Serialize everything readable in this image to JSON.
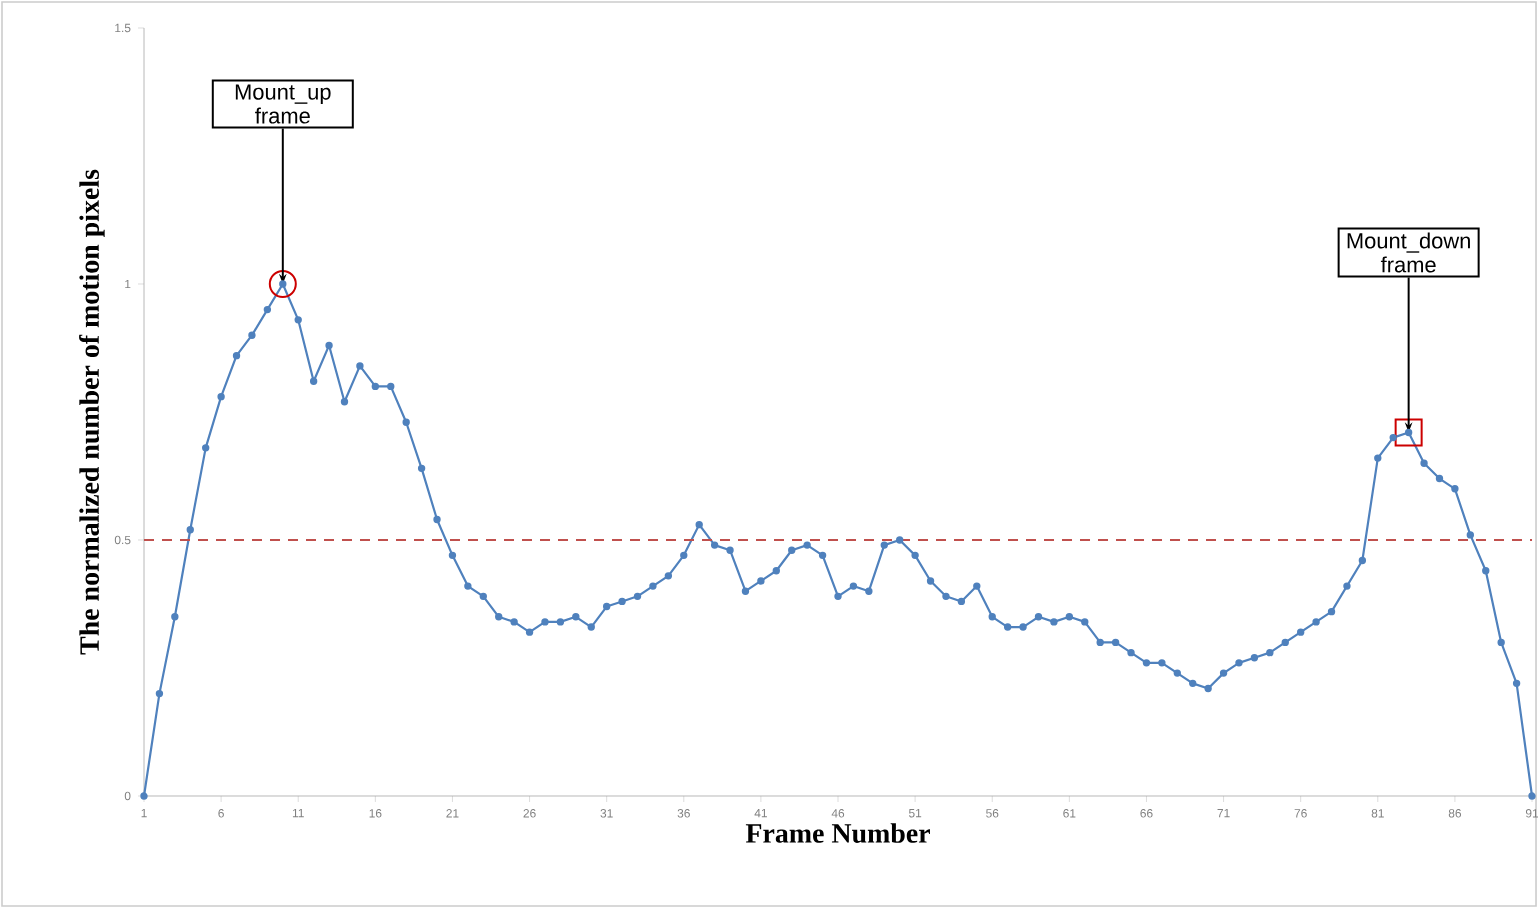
{
  "chart_data": {
    "type": "line",
    "xlabel": "Frame Number",
    "ylabel": "The normalized number of motion pixels",
    "x": [
      1,
      2,
      3,
      4,
      5,
      6,
      7,
      8,
      9,
      10,
      11,
      12,
      13,
      14,
      15,
      16,
      17,
      18,
      19,
      20,
      21,
      22,
      23,
      24,
      25,
      26,
      27,
      28,
      29,
      30,
      31,
      32,
      33,
      34,
      35,
      36,
      37,
      38,
      39,
      40,
      41,
      42,
      43,
      44,
      45,
      46,
      47,
      48,
      49,
      50,
      51,
      52,
      53,
      54,
      55,
      56,
      57,
      58,
      59,
      60,
      61,
      62,
      63,
      64,
      65,
      66,
      67,
      68,
      69,
      70,
      71,
      72,
      73,
      74,
      75,
      76,
      77,
      78,
      79,
      80,
      81,
      82,
      83,
      84,
      85,
      86,
      87,
      88,
      89,
      90,
      91
    ],
    "series": [
      {
        "color": "#4f81bd",
        "values": [
          0,
          0.2,
          0.35,
          0.52,
          0.68,
          0.78,
          0.86,
          0.9,
          0.95,
          1.0,
          0.93,
          0.81,
          0.88,
          0.77,
          0.84,
          0.8,
          0.8,
          0.73,
          0.64,
          0.54,
          0.47,
          0.41,
          0.39,
          0.35,
          0.34,
          0.32,
          0.34,
          0.34,
          0.35,
          0.33,
          0.37,
          0.38,
          0.39,
          0.41,
          0.43,
          0.47,
          0.53,
          0.49,
          0.48,
          0.4,
          0.42,
          0.44,
          0.48,
          0.49,
          0.47,
          0.39,
          0.41,
          0.4,
          0.49,
          0.5,
          0.47,
          0.42,
          0.39,
          0.38,
          0.41,
          0.35,
          0.33,
          0.33,
          0.35,
          0.34,
          0.35,
          0.34,
          0.3,
          0.3,
          0.28,
          0.26,
          0.26,
          0.24,
          0.22,
          0.21,
          0.24,
          0.26,
          0.27,
          0.28,
          0.3,
          0.32,
          0.34,
          0.36,
          0.41,
          0.46,
          0.66,
          0.7,
          0.71,
          0.65,
          0.62,
          0.6,
          0.51,
          0.44,
          0.3,
          0.22,
          0
        ]
      }
    ],
    "xlim": [
      1,
      91
    ],
    "ylim": [
      0,
      1.5
    ],
    "xticks": [
      1,
      6,
      11,
      16,
      21,
      26,
      31,
      36,
      41,
      46,
      51,
      56,
      61,
      66,
      71,
      76,
      81,
      86,
      91
    ],
    "yticks": [
      0,
      0.5,
      1,
      1.5
    ],
    "marker": "circle",
    "line_style": "solid",
    "grid": false,
    "ref_lines": [
      {
        "axis": "y",
        "value": 0.5,
        "color": "#c0504d",
        "line_style": "dashed"
      }
    ],
    "annotations": [
      {
        "text": "Mount_up frame",
        "x": 10,
        "y": 1.0
      },
      {
        "text": "Mount_down frame",
        "x": 83,
        "y": 0.71
      }
    ]
  }
}
